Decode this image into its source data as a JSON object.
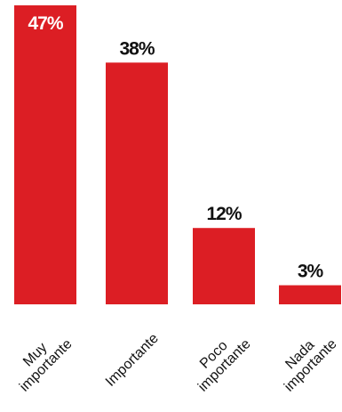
{
  "chart_data": {
    "type": "bar",
    "categories": [
      [
        "Muy",
        "importante"
      ],
      [
        "Importante"
      ],
      [
        "Poco",
        "importante"
      ],
      [
        "Nada",
        "importante"
      ]
    ],
    "values": [
      47,
      38,
      12,
      3
    ],
    "value_labels": [
      "47%",
      "38%",
      "12%",
      "3%"
    ],
    "ylim": [
      0,
      47
    ],
    "bar_color": "#dc1e24",
    "value_label_color_inside": "#ffffff",
    "value_label_color_outside": "#111111",
    "grid": false,
    "legend": "none"
  }
}
